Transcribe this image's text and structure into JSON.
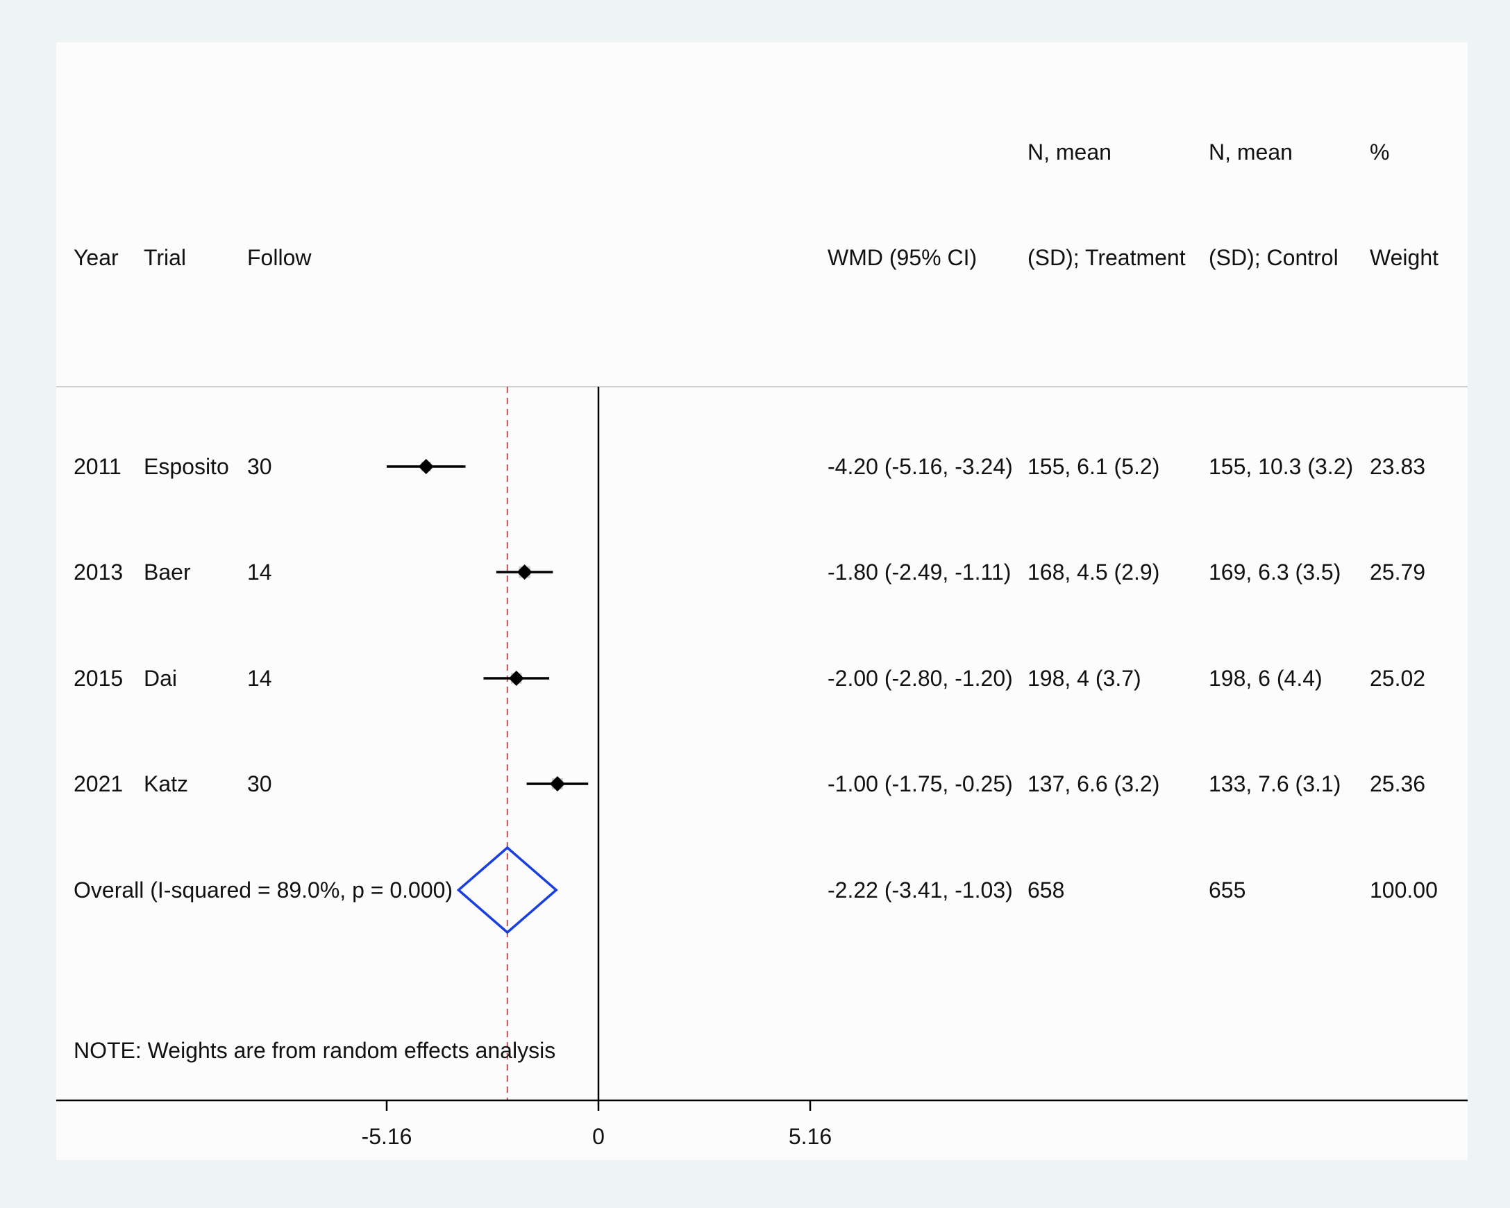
{
  "headers": {
    "row1": {
      "n_treat": "N, mean",
      "n_ctrl": "N, mean",
      "pct": "%"
    },
    "row2": {
      "year": "Year",
      "trial": "Trial",
      "follow": "Follow",
      "wmd": "WMD (95% CI)",
      "n_treat": "(SD); Treatment",
      "n_ctrl": "(SD); Control",
      "pct": "Weight"
    }
  },
  "chart_data": {
    "type": "forest",
    "x_ticks": [
      -5.16,
      0,
      5.16
    ],
    "x_tick_labels": [
      "-5.16",
      "0",
      "5.16"
    ],
    "xlim": [
      -5.16,
      5.16
    ],
    "null_line": 0,
    "reference_line": -2.22,
    "colors": {
      "study_marker": "#000000",
      "diamond": "#1a3fe0",
      "reference_line": "#c0504d",
      "axis": "#000000"
    },
    "studies": [
      {
        "year": "2011",
        "trial": "Esposito",
        "follow": "30",
        "wmd": -4.2,
        "ci": [
          -5.16,
          -3.24
        ],
        "wmd_text": "-4.20 (-5.16, -3.24)",
        "treatment": "155, 6.1 (5.2)",
        "control": "155, 10.3 (3.2)",
        "weight": "23.83"
      },
      {
        "year": "2013",
        "trial": "Baer",
        "follow": "14",
        "wmd": -1.8,
        "ci": [
          -2.49,
          -1.11
        ],
        "wmd_text": "-1.80 (-2.49, -1.11)",
        "treatment": "168, 4.5 (2.9)",
        "control": "169, 6.3 (3.5)",
        "weight": "25.79"
      },
      {
        "year": "2015",
        "trial": "Dai",
        "follow": "14",
        "wmd": -2.0,
        "ci": [
          -2.8,
          -1.2
        ],
        "wmd_text": "-2.00 (-2.80, -1.20)",
        "treatment": "198, 4 (3.7)",
        "control": "198, 6 (4.4)",
        "weight": "25.02"
      },
      {
        "year": "2021",
        "trial": "Katz",
        "follow": "30",
        "wmd": -1.0,
        "ci": [
          -1.75,
          -0.25
        ],
        "wmd_text": "-1.00 (-1.75, -0.25)",
        "treatment": "137, 6.6 (3.2)",
        "control": "133, 7.6 (3.1)",
        "weight": "25.36"
      }
    ],
    "overall": {
      "label": "Overall  (I-squared = 89.0%, p = 0.000)",
      "wmd": -2.22,
      "ci": [
        -3.41,
        -1.03
      ],
      "wmd_text": "-2.22 (-3.41, -1.03)",
      "treatment": "658",
      "control": "655",
      "weight": "100.00"
    },
    "note": "NOTE: Weights are from random effects analysis"
  }
}
